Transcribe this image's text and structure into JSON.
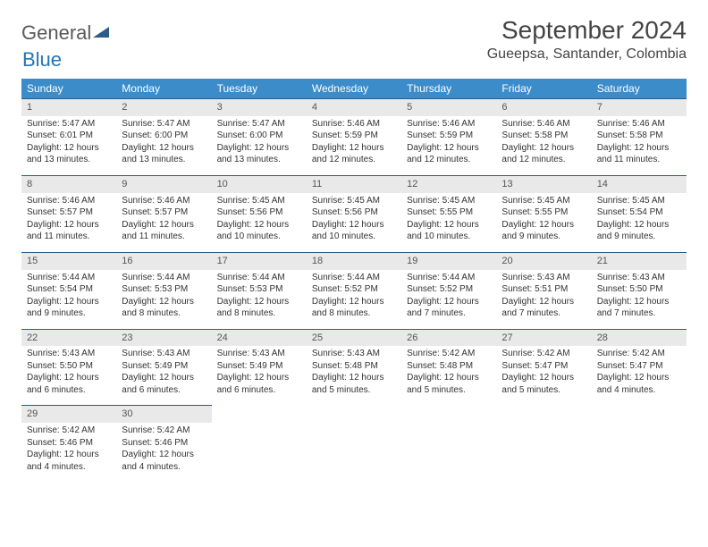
{
  "brand": {
    "word1": "General",
    "word2": "Blue"
  },
  "title": "September 2024",
  "location": "Gueepsa, Santander, Colombia",
  "colors": {
    "header_bg": "#3b8cc9",
    "header_text": "#ffffff",
    "daynum_bg": "#e9e9e9",
    "daynum_border": "#2a5c8a",
    "text": "#333333",
    "brand_gray": "#5a5a5a",
    "brand_blue": "#2176b8"
  },
  "weekdays": [
    "Sunday",
    "Monday",
    "Tuesday",
    "Wednesday",
    "Thursday",
    "Friday",
    "Saturday"
  ],
  "weeks": [
    [
      {
        "n": "1",
        "sr": "5:47 AM",
        "ss": "6:01 PM",
        "dl": "12 hours and 13 minutes."
      },
      {
        "n": "2",
        "sr": "5:47 AM",
        "ss": "6:00 PM",
        "dl": "12 hours and 13 minutes."
      },
      {
        "n": "3",
        "sr": "5:47 AM",
        "ss": "6:00 PM",
        "dl": "12 hours and 13 minutes."
      },
      {
        "n": "4",
        "sr": "5:46 AM",
        "ss": "5:59 PM",
        "dl": "12 hours and 12 minutes."
      },
      {
        "n": "5",
        "sr": "5:46 AM",
        "ss": "5:59 PM",
        "dl": "12 hours and 12 minutes."
      },
      {
        "n": "6",
        "sr": "5:46 AM",
        "ss": "5:58 PM",
        "dl": "12 hours and 12 minutes."
      },
      {
        "n": "7",
        "sr": "5:46 AM",
        "ss": "5:58 PM",
        "dl": "12 hours and 11 minutes."
      }
    ],
    [
      {
        "n": "8",
        "sr": "5:46 AM",
        "ss": "5:57 PM",
        "dl": "12 hours and 11 minutes."
      },
      {
        "n": "9",
        "sr": "5:46 AM",
        "ss": "5:57 PM",
        "dl": "12 hours and 11 minutes."
      },
      {
        "n": "10",
        "sr": "5:45 AM",
        "ss": "5:56 PM",
        "dl": "12 hours and 10 minutes."
      },
      {
        "n": "11",
        "sr": "5:45 AM",
        "ss": "5:56 PM",
        "dl": "12 hours and 10 minutes."
      },
      {
        "n": "12",
        "sr": "5:45 AM",
        "ss": "5:55 PM",
        "dl": "12 hours and 10 minutes."
      },
      {
        "n": "13",
        "sr": "5:45 AM",
        "ss": "5:55 PM",
        "dl": "12 hours and 9 minutes."
      },
      {
        "n": "14",
        "sr": "5:45 AM",
        "ss": "5:54 PM",
        "dl": "12 hours and 9 minutes."
      }
    ],
    [
      {
        "n": "15",
        "sr": "5:44 AM",
        "ss": "5:54 PM",
        "dl": "12 hours and 9 minutes."
      },
      {
        "n": "16",
        "sr": "5:44 AM",
        "ss": "5:53 PM",
        "dl": "12 hours and 8 minutes."
      },
      {
        "n": "17",
        "sr": "5:44 AM",
        "ss": "5:53 PM",
        "dl": "12 hours and 8 minutes."
      },
      {
        "n": "18",
        "sr": "5:44 AM",
        "ss": "5:52 PM",
        "dl": "12 hours and 8 minutes."
      },
      {
        "n": "19",
        "sr": "5:44 AM",
        "ss": "5:52 PM",
        "dl": "12 hours and 7 minutes."
      },
      {
        "n": "20",
        "sr": "5:43 AM",
        "ss": "5:51 PM",
        "dl": "12 hours and 7 minutes."
      },
      {
        "n": "21",
        "sr": "5:43 AM",
        "ss": "5:50 PM",
        "dl": "12 hours and 7 minutes."
      }
    ],
    [
      {
        "n": "22",
        "sr": "5:43 AM",
        "ss": "5:50 PM",
        "dl": "12 hours and 6 minutes."
      },
      {
        "n": "23",
        "sr": "5:43 AM",
        "ss": "5:49 PM",
        "dl": "12 hours and 6 minutes."
      },
      {
        "n": "24",
        "sr": "5:43 AM",
        "ss": "5:49 PM",
        "dl": "12 hours and 6 minutes."
      },
      {
        "n": "25",
        "sr": "5:43 AM",
        "ss": "5:48 PM",
        "dl": "12 hours and 5 minutes."
      },
      {
        "n": "26",
        "sr": "5:42 AM",
        "ss": "5:48 PM",
        "dl": "12 hours and 5 minutes."
      },
      {
        "n": "27",
        "sr": "5:42 AM",
        "ss": "5:47 PM",
        "dl": "12 hours and 5 minutes."
      },
      {
        "n": "28",
        "sr": "5:42 AM",
        "ss": "5:47 PM",
        "dl": "12 hours and 4 minutes."
      }
    ],
    [
      {
        "n": "29",
        "sr": "5:42 AM",
        "ss": "5:46 PM",
        "dl": "12 hours and 4 minutes."
      },
      {
        "n": "30",
        "sr": "5:42 AM",
        "ss": "5:46 PM",
        "dl": "12 hours and 4 minutes."
      },
      null,
      null,
      null,
      null,
      null
    ]
  ],
  "labels": {
    "sunrise": "Sunrise:",
    "sunset": "Sunset:",
    "daylight": "Daylight:"
  }
}
